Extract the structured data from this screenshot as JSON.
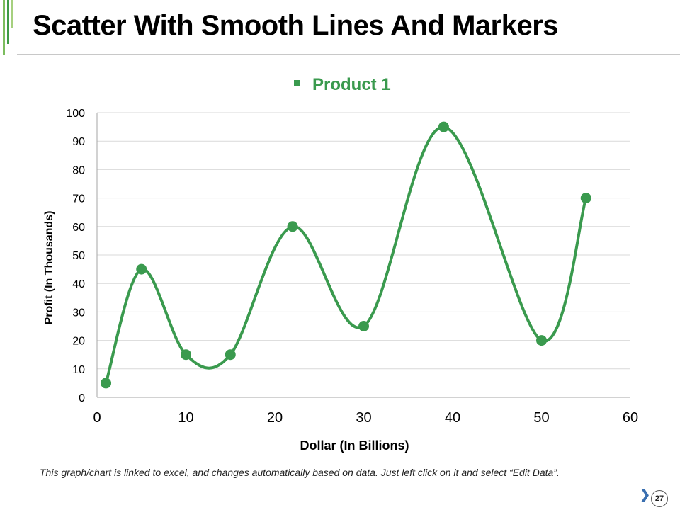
{
  "slide": {
    "title": "Scatter With Smooth Lines And Markers",
    "footnote": "This graph/chart is linked to excel, and changes automatically based on data. Just left click on it and select “Edit Data”.",
    "page_number": "27",
    "next_icon": "chevron-right-icon"
  },
  "colors": {
    "series": "#3a9a4e",
    "accent": "#5aa84a",
    "grid": "#d9d9d9"
  },
  "chart_data": {
    "type": "scatter",
    "xlabel": "Dollar (In Billions)",
    "ylabel": "Profit  (In Thousands)",
    "xlim": [
      0,
      60
    ],
    "ylim": [
      0,
      100
    ],
    "x_ticks": [
      0,
      10,
      20,
      30,
      40,
      50,
      60
    ],
    "y_ticks": [
      0,
      10,
      20,
      30,
      40,
      50,
      60,
      70,
      80,
      90,
      100
    ],
    "grid": "horizontal",
    "legend_position": "top-center",
    "smooth": true,
    "series": [
      {
        "name": "Product 1",
        "x": [
          1,
          5,
          10,
          15,
          22,
          30,
          39,
          50,
          55
        ],
        "y": [
          5,
          45,
          15,
          15,
          60,
          25,
          95,
          20,
          70
        ]
      }
    ]
  }
}
